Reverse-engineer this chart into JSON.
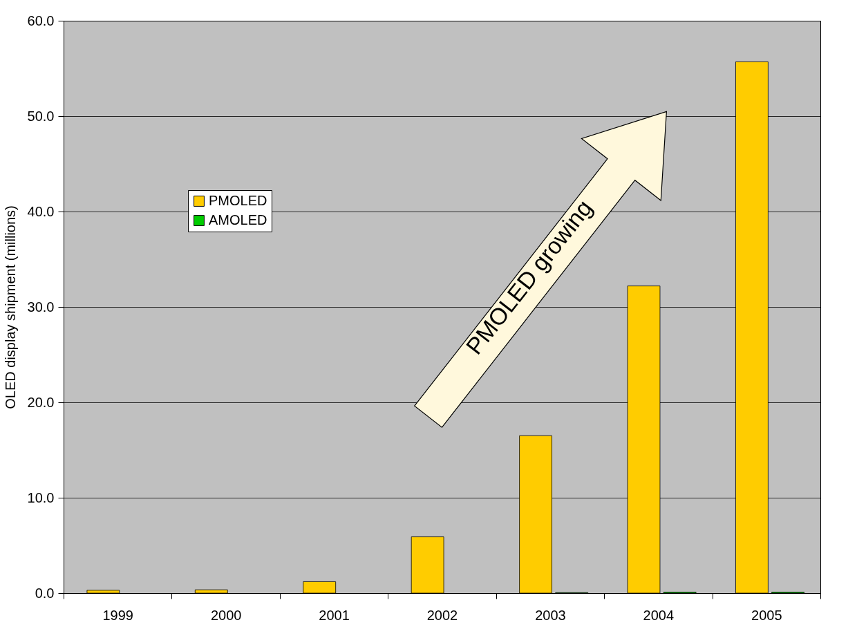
{
  "chart_data": {
    "type": "bar",
    "ylabel": "OLED display shipment (millions)",
    "categories": [
      "1999",
      "2000",
      "2001",
      "2002",
      "2003",
      "2004",
      "2005"
    ],
    "series": [
      {
        "name": "PMOLED",
        "color": "#ffcc00",
        "values": [
          0.3,
          0.35,
          1.2,
          5.9,
          16.5,
          32.2,
          55.7
        ]
      },
      {
        "name": "AMOLED",
        "color": "#00cc00",
        "values": [
          null,
          null,
          null,
          null,
          0.05,
          0.1,
          0.1
        ]
      }
    ],
    "ylim": [
      0,
      60
    ],
    "yticks": [
      {
        "value": 0,
        "label": "0.0"
      },
      {
        "value": 10,
        "label": "10.0"
      },
      {
        "value": 20,
        "label": "20.0"
      },
      {
        "value": 30,
        "label": "30.0"
      },
      {
        "value": 40,
        "label": "40.0"
      },
      {
        "value": 50,
        "label": "50.0"
      },
      {
        "value": 60,
        "label": "60.0"
      }
    ],
    "grid": "y",
    "legend": "top left",
    "annotations": [
      "PMOLED growing"
    ]
  }
}
